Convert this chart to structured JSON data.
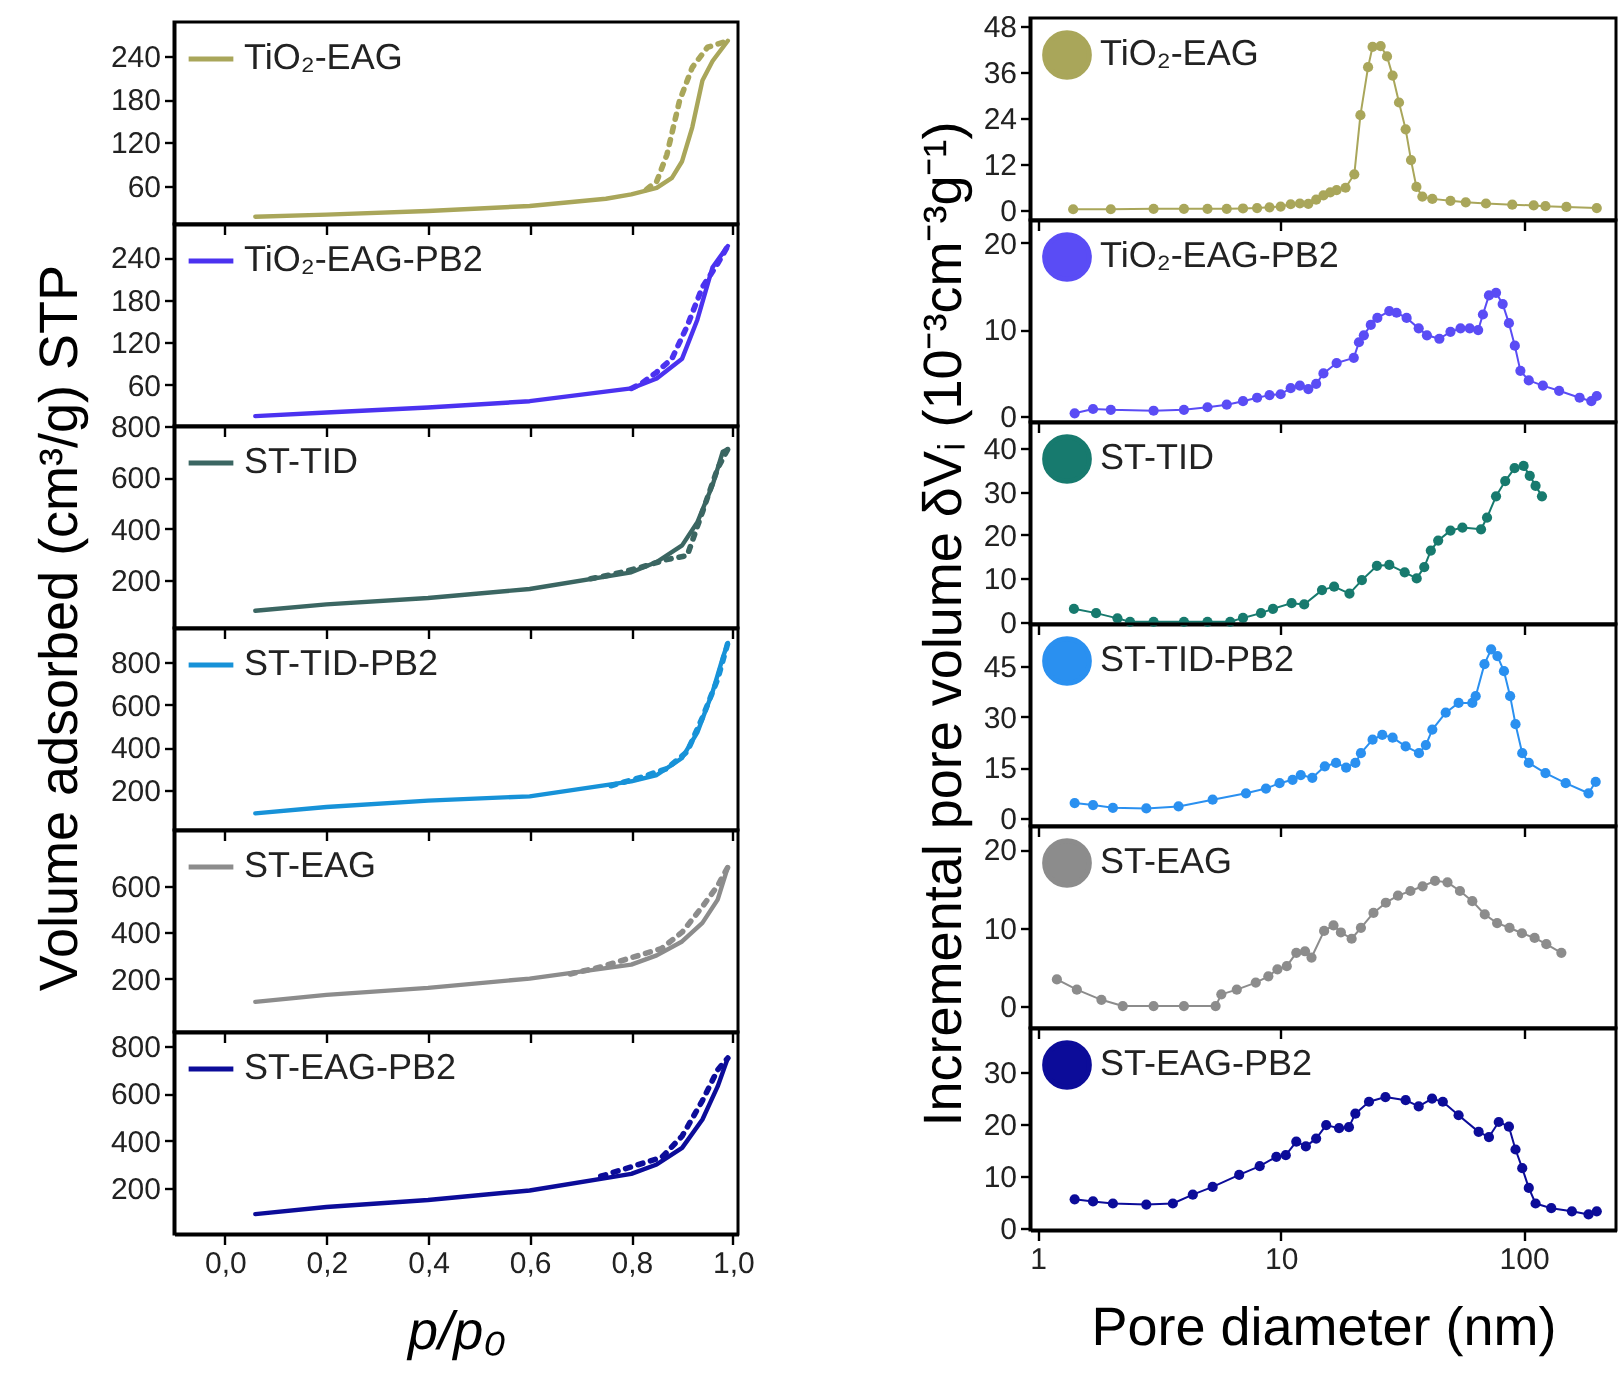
{
  "chart_data": [
    {
      "type": "line",
      "ylabel": "Volume adsorbed (cm³/g) STP",
      "xlim": [
        -0.1,
        1.01
      ],
      "xticks": [
        0,
        0.2,
        0.4,
        0.6,
        0.8,
        1
      ],
      "ylim": [
        7,
        287
      ],
      "yticks": [
        60,
        120,
        180,
        240
      ],
      "tick_labels": "y",
      "legend": "top left",
      "series": [
        {
          "name": "TiO₂-EAG",
          "color": "#a9a65a",
          "line_style": "solid",
          "x": [
            0.06,
            0.2,
            0.4,
            0.6,
            0.75,
            0.8,
            0.85,
            0.88,
            0.9,
            0.92,
            0.94,
            0.96,
            0.99
          ],
          "values": [
            17,
            20,
            25,
            32,
            42,
            48,
            57,
            71,
            94,
            141,
            206,
            233,
            261
          ]
        },
        {
          "color": "#a9a65a",
          "line_style": "dotted",
          "x": [
            0.99,
            0.95,
            0.92,
            0.895,
            0.87,
            0.85,
            0.83
          ],
          "values": [
            261,
            252,
            224,
            178,
            103,
            66,
            55
          ]
        }
      ]
    },
    {
      "type": "line",
      "xlim": [
        -0.1,
        1.01
      ],
      "xticks": [
        0,
        0.2,
        0.4,
        0.6,
        0.8,
        1
      ],
      "ylim": [
        2,
        287
      ],
      "yticks": [
        60,
        120,
        180,
        240
      ],
      "tick_labels": "y",
      "legend": "top left",
      "series": [
        {
          "name": "TiO₂-EAG-PB2",
          "color": "#4b32f0",
          "line_style": "solid",
          "x": [
            0.06,
            0.2,
            0.4,
            0.6,
            0.8,
            0.85,
            0.9,
            0.93,
            0.96,
            0.99
          ],
          "values": [
            16,
            21,
            28,
            37,
            55,
            69,
            97,
            152,
            226,
            256
          ]
        },
        {
          "color": "#4b32f0",
          "line_style": "dotted",
          "x": [
            0.99,
            0.97,
            0.94,
            0.91,
            0.88,
            0.85,
            0.82,
            0.8
          ],
          "values": [
            256,
            231,
            198,
            143,
            97,
            78,
            62,
            55
          ]
        }
      ]
    },
    {
      "type": "line",
      "xlim": [
        -0.1,
        1.01
      ],
      "xticks": [
        0,
        0.2,
        0.4,
        0.6,
        0.8,
        1
      ],
      "ylim": [
        13,
        800
      ],
      "yticks": [
        200,
        400,
        600,
        800
      ],
      "tick_labels": "y",
      "legend": "top left",
      "series": [
        {
          "name": "ST-TID",
          "color": "#3b6662",
          "line_style": "solid",
          "x": [
            0.06,
            0.2,
            0.4,
            0.6,
            0.8,
            0.85,
            0.9,
            0.93,
            0.96,
            0.98,
            0.99
          ],
          "values": [
            80,
            105,
            130,
            165,
            230,
            270,
            335,
            425,
            570,
            700,
            710
          ]
        },
        {
          "color": "#3b6662",
          "line_style": "dotted",
          "x": [
            0.99,
            0.97,
            0.94,
            0.91,
            0.87,
            0.82,
            0.76,
            0.72
          ],
          "values": [
            710,
            635,
            465,
            295,
            280,
            250,
            220,
            205
          ]
        }
      ]
    },
    {
      "type": "line",
      "xlim": [
        -0.1,
        1.01
      ],
      "xticks": [
        0,
        0.2,
        0.4,
        0.6,
        0.8,
        1
      ],
      "ylim": [
        12,
        960
      ],
      "yticks": [
        200,
        400,
        600,
        800
      ],
      "tick_labels": "y",
      "legend": "top left",
      "series": [
        {
          "name": "ST-TID-PB2",
          "color": "#1792d8",
          "line_style": "solid",
          "x": [
            0.06,
            0.2,
            0.4,
            0.6,
            0.8,
            0.85,
            0.9,
            0.93,
            0.96,
            0.98,
            0.99
          ],
          "values": [
            90,
            120,
            150,
            170,
            240,
            270,
            350,
            470,
            660,
            820,
            890
          ]
        },
        {
          "color": "#1792d8",
          "line_style": "dotted",
          "x": [
            0.99,
            0.97,
            0.94,
            0.91,
            0.87,
            0.82,
            0.76
          ],
          "values": [
            890,
            720,
            540,
            380,
            300,
            260,
            220
          ]
        }
      ]
    },
    {
      "type": "line",
      "xlim": [
        -0.1,
        1.01
      ],
      "xticks": [
        0,
        0.2,
        0.4,
        0.6,
        0.8,
        1
      ],
      "ylim": [
        -30,
        840
      ],
      "yticks": [
        200,
        400,
        600
      ],
      "tick_labels": "y",
      "legend": "top left",
      "series": [
        {
          "name": "ST-EAG",
          "color": "#8c8c8c",
          "line_style": "solid",
          "x": [
            0.06,
            0.2,
            0.4,
            0.6,
            0.8,
            0.85,
            0.9,
            0.94,
            0.97,
            0.99
          ],
          "values": [
            100,
            130,
            160,
            200,
            260,
            300,
            360,
            440,
            540,
            680
          ]
        },
        {
          "color": "#8c8c8c",
          "line_style": "dotted",
          "x": [
            0.99,
            0.97,
            0.94,
            0.9,
            0.86,
            0.8,
            0.74,
            0.68
          ],
          "values": [
            680,
            600,
            510,
            400,
            330,
            290,
            250,
            220
          ]
        }
      ]
    },
    {
      "type": "line",
      "xlabel": "p/p₀",
      "xlim": [
        -0.1,
        1.01
      ],
      "xticks": [
        {
          "value": 0,
          "label": "0,0"
        },
        {
          "value": 0.2,
          "label": "0,2"
        },
        {
          "value": 0.4,
          "label": "0,4"
        },
        {
          "value": 0.6,
          "label": "0,6"
        },
        {
          "value": 0.8,
          "label": "0,8"
        },
        {
          "value": 1,
          "label": "1,0"
        }
      ],
      "ylim": [
        6,
        860
      ],
      "yticks": [
        200,
        400,
        600,
        800
      ],
      "legend": "top left",
      "series": [
        {
          "name": "ST-EAG-PB2",
          "color": "#0c0c99",
          "line_style": "solid",
          "x": [
            0.06,
            0.2,
            0.4,
            0.6,
            0.8,
            0.85,
            0.9,
            0.94,
            0.97,
            0.99
          ],
          "values": [
            90,
            120,
            150,
            190,
            260,
            300,
            370,
            490,
            630,
            750
          ]
        },
        {
          "color": "#0c0c99",
          "line_style": "dotted",
          "x": [
            0.99,
            0.97,
            0.94,
            0.9,
            0.86,
            0.8,
            0.74
          ],
          "values": [
            750,
            700,
            570,
            420,
            330,
            290,
            250
          ]
        }
      ]
    },
    {
      "type": "line",
      "ylabel": "Incremental pore volume δVᵢ (10⁻³cm⁻³g⁻¹)",
      "log": "x",
      "marker": "circle",
      "xlim": [
        0.93,
        240
      ],
      "xticks": [
        1,
        10,
        100
      ],
      "ylim": [
        -2.6,
        50
      ],
      "yticks": [
        0,
        12,
        24,
        36,
        48
      ],
      "tick_labels": "y",
      "legend": "top left",
      "series": [
        {
          "name": "TiO₂-EAG",
          "color": "#a9a65a",
          "x": [
            1.4,
            2,
            3,
            4,
            5,
            6,
            7,
            8,
            9,
            10,
            11,
            12,
            13,
            14,
            15,
            16,
            17,
            18.5,
            20.1,
            21.3,
            22.9,
            23.9,
            25.8,
            27.4,
            28.9,
            30.7,
            32.7,
            34.4,
            36.2,
            38.3,
            42.1,
            50,
            57.8,
            70,
            89.8,
            110,
            123,
            150,
            200
          ],
          "values": [
            0.2,
            0.2,
            0.3,
            0.3,
            0.3,
            0.3,
            0.4,
            0.5,
            0.7,
            0.9,
            1.5,
            1.7,
            1.6,
            2.7,
            3.8,
            4.6,
            5.2,
            5.8,
            9.3,
            24.7,
            37.2,
            42.5,
            42.7,
            40,
            35,
            28,
            21,
            13,
            6,
            3.5,
            2.9,
            2.4,
            2.0,
            1.7,
            1.4,
            1.2,
            1.0,
            0.8,
            0.5
          ]
        }
      ]
    },
    {
      "type": "line",
      "log": "x",
      "marker": "circle",
      "xlim": [
        0.93,
        240
      ],
      "xticks": [
        1,
        10,
        100
      ],
      "ylim": [
        -0.7,
        22.6
      ],
      "yticks": [
        0,
        10,
        20
      ],
      "tick_labels": "y",
      "legend": "top left",
      "series": [
        {
          "name": "TiO₂-EAG-PB2",
          "color": "#5a4cf5",
          "x": [
            1.42,
            1.69,
            2,
            3,
            4,
            5,
            6,
            7,
            8,
            9,
            10,
            11,
            12,
            13,
            14,
            15,
            17,
            20,
            21,
            22,
            23.5,
            25,
            28,
            30,
            33,
            37,
            40,
            45,
            50,
            55,
            60,
            65,
            68,
            72,
            77,
            82,
            87,
            92,
            97,
            105,
            120,
            140,
            170,
            190,
            200
          ],
          "values": [
            0.3,
            0.8,
            0.7,
            0.6,
            0.7,
            1.0,
            1.3,
            1.7,
            2.1,
            2.4,
            2.5,
            3.2,
            3.5,
            3.1,
            3.7,
            4.9,
            6.1,
            6.7,
            8.5,
            9.3,
            10.5,
            11.3,
            12.1,
            11.9,
            11.3,
            10.1,
            9.3,
            8.9,
            9.7,
            10.1,
            10.1,
            9.9,
            11.7,
            13.9,
            14.2,
            12.9,
            10.7,
            8.1,
            5.2,
            4.1,
            3.5,
            2.9,
            2.1,
            1.7,
            2.3
          ]
        }
      ]
    },
    {
      "type": "line",
      "log": "x",
      "marker": "circle",
      "xlim": [
        0.93,
        240
      ],
      "xticks": [
        1,
        10,
        100
      ],
      "ylim": [
        -0.5,
        46
      ],
      "yticks": [
        0,
        10,
        20,
        30,
        40
      ],
      "tick_labels": "y",
      "legend": "top left",
      "series": [
        {
          "name": "ST-TID",
          "color": "#177a6e",
          "x": [
            1.41,
            1.74,
            2.13,
            2.4,
            3,
            4,
            5,
            6.2,
            7,
            8.3,
            9.3,
            11.1,
            12.5,
            14.8,
            16.6,
            19.2,
            21.6,
            24.9,
            28,
            32.4,
            36.3,
            39,
            41.5,
            44.5,
            50,
            56,
            66.8,
            70.7,
            77,
            84,
            91.8,
            100,
            106,
            112,
            119
          ],
          "values": [
            3.0,
            2.0,
            0.8,
            0,
            0,
            0,
            0,
            0,
            0.9,
            2.0,
            3.0,
            4.3,
            4.0,
            7.3,
            8.1,
            6.5,
            9.6,
            12.9,
            13.1,
            11.4,
            10.0,
            12.6,
            16.4,
            18.7,
            21.0,
            21.7,
            21.3,
            24.0,
            28.9,
            32.4,
            35.4,
            35.9,
            33.6,
            31.3,
            28.9
          ]
        }
      ]
    },
    {
      "type": "line",
      "log": "x",
      "marker": "circle",
      "xlim": [
        0.93,
        240
      ],
      "xticks": [
        1,
        10,
        100
      ],
      "ylim": [
        -2.4,
        57.5
      ],
      "yticks": [
        0,
        15,
        30,
        45
      ],
      "tick_labels": "y",
      "legend": "top left",
      "series": [
        {
          "name": "ST-TID-PB2",
          "color": "#2a90f0",
          "x": [
            1.42,
            1.69,
            2.04,
            2.8,
            3.8,
            5.25,
            7.2,
            8.7,
            9.9,
            11.2,
            12.1,
            13.5,
            15.2,
            16.9,
            18.6,
            20.3,
            21.4,
            23.9,
            26.2,
            28.9,
            32.7,
            37.1,
            39.6,
            42.1,
            47.8,
            54,
            61.5,
            63.5,
            69,
            73.5,
            78,
            83,
            88,
            92.6,
            98.7,
            105,
            123,
            149,
            185,
            198
          ],
          "values": [
            4.4,
            3.8,
            3.0,
            2.8,
            3.4,
            5.4,
            7.3,
            8.7,
            10.3,
            11.3,
            12.7,
            11.9,
            15.3,
            16.3,
            14.9,
            16.3,
            19.2,
            23.2,
            24.6,
            23.8,
            21.2,
            19.2,
            21.6,
            26.2,
            31.2,
            34.1,
            34.1,
            36.1,
            45.6,
            50.0,
            48.0,
            43.5,
            36.1,
            27.8,
            19.2,
            16.3,
            13.3,
            10.3,
            7.3,
            10.7
          ]
        }
      ]
    },
    {
      "type": "line",
      "log": "x",
      "marker": "circle",
      "xlim": [
        0.93,
        240
      ],
      "xticks": [
        1,
        10,
        100
      ],
      "ylim": [
        -2.8,
        23
      ],
      "yticks": [
        0,
        10,
        20
      ],
      "tick_labels": "y",
      "legend": "top left",
      "series": [
        {
          "name": "ST-EAG",
          "color": "#8c8c8c",
          "x": [
            1.2,
            1.45,
            1.83,
            2.24,
            3,
            4,
            5.4,
            5.7,
            6.6,
            7.9,
            8.9,
            9.7,
            10.6,
            11.6,
            12.6,
            13.4,
            15.1,
            16.5,
            17.7,
            19.6,
            21.4,
            24.1,
            27.1,
            30.4,
            34.2,
            38.4,
            43.2,
            48.6,
            54.7,
            61.5,
            69.2,
            77.8,
            87.5,
            98.4,
            111,
            124,
            143
          ],
          "values": [
            3.4,
            2.1,
            0.8,
            0,
            0,
            0,
            0,
            1.5,
            2.1,
            3.0,
            3.8,
            4.7,
            5.1,
            6.8,
            7.0,
            6.2,
            9.6,
            10.3,
            9.4,
            8.6,
            10.0,
            11.9,
            13.2,
            14.1,
            14.7,
            15.3,
            16.0,
            15.8,
            14.7,
            13.4,
            11.7,
            10.6,
            10.0,
            9.3,
            8.7,
            7.9,
            6.8
          ]
        }
      ]
    },
    {
      "type": "line",
      "xlabel": "Pore diameter (nm)",
      "log": "x",
      "marker": "circle",
      "xlim": [
        0.93,
        240
      ],
      "xticks": [
        1,
        10,
        100
      ],
      "ylim": [
        -0.4,
        38.5
      ],
      "yticks": [
        0,
        10,
        20,
        30
      ],
      "legend": "top left",
      "series": [
        {
          "name": "ST-EAG-PB2",
          "color": "#0c0c99",
          "x": [
            1.42,
            1.69,
            2.04,
            2.8,
            3.6,
            4.35,
            5.25,
            6.75,
            8.2,
            9.6,
            10.5,
            11.6,
            12.7,
            14,
            15.4,
            17.4,
            19.1,
            20.3,
            23.1,
            27,
            32.7,
            37,
            42,
            46.5,
            54,
            65.3,
            72,
            79,
            87,
            92.6,
            98.7,
            105,
            112,
            130,
            158,
            185,
            200
          ],
          "values": [
            5.5,
            5.1,
            4.7,
            4.5,
            4.7,
            6.4,
            7.9,
            10.2,
            11.9,
            13.7,
            14.0,
            16.6,
            15.7,
            17.2,
            19.8,
            19.2,
            19.4,
            22.0,
            24.3,
            25.2,
            24.6,
            23.4,
            24.9,
            24.3,
            21.7,
            18.5,
            17.5,
            20.4,
            19.5,
            15.1,
            11.5,
            7.7,
            4.7,
            3.8,
            3.2,
            2.6,
            3.2
          ]
        }
      ]
    }
  ]
}
